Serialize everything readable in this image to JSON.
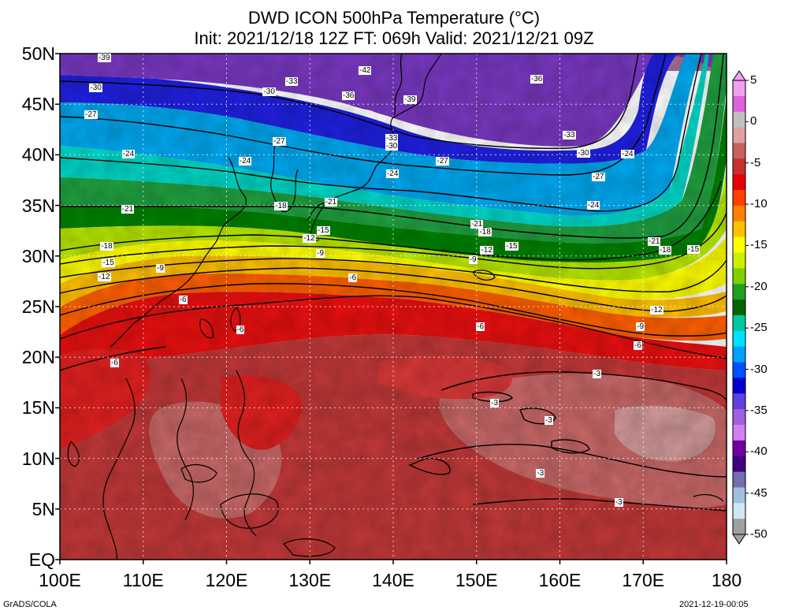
{
  "title": {
    "line1": "DWD ICON 500hPa Temperature (°C)",
    "line2": "Init: 2021/12/18 12Z  FT: 069h  Valid: 2021/12/21 09Z"
  },
  "lat_labels": [
    "50N",
    "45N",
    "40N",
    "35N",
    "30N",
    "25N",
    "20N",
    "15N",
    "10N",
    "5N",
    "EQ"
  ],
  "lon_labels": [
    "100E",
    "110E",
    "120E",
    "130E",
    "140E",
    "150E",
    "160E",
    "170E",
    "180"
  ],
  "colorbar": {
    "labels": [
      "5",
      "0",
      "-5",
      "-10",
      "-15",
      "-20",
      "-25",
      "-30",
      "-35",
      "-40",
      "-45",
      "-50"
    ],
    "colors": [
      "#f0a0f0",
      "#e060e0",
      "#c0c0c0",
      "#e0a0a0",
      "#c86060",
      "#c83030",
      "#e80000",
      "#ff4000",
      "#ff8000",
      "#ffc000",
      "#ffff00",
      "#c8f000",
      "#80d000",
      "#20a020",
      "#006400",
      "#00c8a0",
      "#00e0ff",
      "#00a0ff",
      "#0050ff",
      "#0000d0",
      "#6040e0",
      "#a060e0",
      "#d080f0",
      "#7000a0",
      "#400080",
      "#7070b0",
      "#a0c0e0",
      "#d0e8f0",
      "#a0a0a0"
    ]
  },
  "footer": {
    "left": "GrADS/COLA",
    "right": "2021-12-19-00:05"
  },
  "contour_labels": [
    {
      "text": "-39",
      "lon": 105.3,
      "lat": 50.0
    },
    {
      "text": "-42",
      "lon": 136.6,
      "lat": 48.3
    },
    {
      "text": "-33",
      "lon": 127.8,
      "lat": 47.2
    },
    {
      "text": "-30",
      "lon": 104.3,
      "lat": 46.6
    },
    {
      "text": "-30",
      "lon": 125.1,
      "lat": 46.2
    },
    {
      "text": "-36",
      "lon": 134.6,
      "lat": 45.8
    },
    {
      "text": "-39",
      "lon": 142.0,
      "lat": 45.4
    },
    {
      "text": "-36",
      "lon": 157.2,
      "lat": 47.4
    },
    {
      "text": "-27",
      "lon": 103.7,
      "lat": 43.9
    },
    {
      "text": "-33",
      "lon": 139.8,
      "lat": 41.6
    },
    {
      "text": "-30",
      "lon": 139.8,
      "lat": 40.8
    },
    {
      "text": "-27",
      "lon": 126.3,
      "lat": 41.3
    },
    {
      "text": "-33",
      "lon": 161.1,
      "lat": 41.9
    },
    {
      "text": "-30",
      "lon": 162.8,
      "lat": 40.1
    },
    {
      "text": "-24",
      "lon": 108.2,
      "lat": 40.0
    },
    {
      "text": "-24",
      "lon": 122.2,
      "lat": 39.3
    },
    {
      "text": "-27",
      "lon": 145.9,
      "lat": 39.3
    },
    {
      "text": "-24",
      "lon": 139.9,
      "lat": 38.1
    },
    {
      "text": "-24",
      "lon": 168.1,
      "lat": 40.0
    },
    {
      "text": "-27",
      "lon": 164.6,
      "lat": 37.8
    },
    {
      "text": "-21",
      "lon": 108.1,
      "lat": 34.6
    },
    {
      "text": "-18",
      "lon": 126.5,
      "lat": 34.9
    },
    {
      "text": "-21",
      "lon": 132.5,
      "lat": 35.3
    },
    {
      "text": "-24",
      "lon": 164.0,
      "lat": 35.0
    },
    {
      "text": "-21",
      "lon": 150.0,
      "lat": 33.1
    },
    {
      "text": "-18",
      "lon": 151.0,
      "lat": 32.3
    },
    {
      "text": "-15",
      "lon": 131.6,
      "lat": 32.5
    },
    {
      "text": "-12",
      "lon": 129.9,
      "lat": 31.7
    },
    {
      "text": "-15",
      "lon": 154.2,
      "lat": 30.9
    },
    {
      "text": "-12",
      "lon": 151.2,
      "lat": 30.5
    },
    {
      "text": "-21",
      "lon": 171.3,
      "lat": 31.4
    },
    {
      "text": "-18",
      "lon": 172.6,
      "lat": 30.5
    },
    {
      "text": "-15",
      "lon": 176.0,
      "lat": 30.6
    },
    {
      "text": "-18",
      "lon": 105.6,
      "lat": 30.9
    },
    {
      "text": "-15",
      "lon": 105.8,
      "lat": 29.3
    },
    {
      "text": "-12",
      "lon": 105.3,
      "lat": 27.9
    },
    {
      "text": "-9",
      "lon": 112.3,
      "lat": 28.7
    },
    {
      "text": "-9",
      "lon": 131.5,
      "lat": 30.2
    },
    {
      "text": "-9",
      "lon": 149.8,
      "lat": 29.6
    },
    {
      "text": "-6",
      "lon": 135.4,
      "lat": 27.8
    },
    {
      "text": "-6",
      "lon": 115.0,
      "lat": 25.6
    },
    {
      "text": "-6",
      "lon": 121.9,
      "lat": 22.7
    },
    {
      "text": "-6",
      "lon": 150.7,
      "lat": 23.0
    },
    {
      "text": "-12",
      "lon": 171.6,
      "lat": 24.6
    },
    {
      "text": "-9",
      "lon": 169.9,
      "lat": 23.0
    },
    {
      "text": "-6",
      "lon": 169.6,
      "lat": 21.1
    },
    {
      "text": "-6",
      "lon": 106.8,
      "lat": 19.4
    },
    {
      "text": "-3",
      "lon": 164.7,
      "lat": 18.3
    },
    {
      "text": "-3",
      "lon": 152.4,
      "lat": 15.4
    },
    {
      "text": "-3",
      "lon": 158.9,
      "lat": 13.7
    },
    {
      "text": "-3",
      "lon": 157.9,
      "lat": 8.5
    },
    {
      "text": "-3",
      "lon": 167.3,
      "lat": 5.6
    }
  ]
}
